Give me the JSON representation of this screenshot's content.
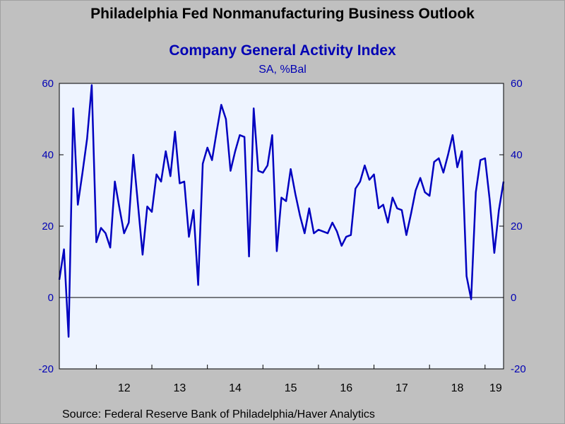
{
  "header": {
    "title": "Philadelphia Fed Nonmanufacturing Business Outlook"
  },
  "footer": {
    "source": "Source:  Federal Reserve Bank of Philadelphia/Haver Analytics"
  },
  "colors": {
    "background": "#c0c0c0",
    "plot_background": "#eef4ff",
    "series": "#0000c0",
    "axis_text": "#0000b4"
  },
  "chart_data": {
    "type": "line",
    "title": "Company General Activity Index",
    "subtitle": "SA, %Bal",
    "ylim": [
      -20,
      60
    ],
    "yticks": [
      -20,
      0,
      20,
      40,
      60
    ],
    "y_axis_both_sides": true,
    "zero_line": true,
    "x_start": "2011-05",
    "x_end": "2019-05",
    "xtick_labels": [
      "12",
      "13",
      "14",
      "15",
      "16",
      "17",
      "18",
      "19"
    ],
    "xtick_years": [
      2012,
      2013,
      2014,
      2015,
      2016,
      2017,
      2018,
      2019
    ],
    "series": [
      {
        "x": [
          "2011-05",
          "2011-06",
          "2011-07",
          "2011-08",
          "2011-09",
          "2011-10",
          "2011-11",
          "2011-12",
          "2012-01",
          "2012-02",
          "2012-03",
          "2012-04",
          "2012-05",
          "2012-06",
          "2012-07",
          "2012-08",
          "2012-09",
          "2012-10",
          "2012-11",
          "2012-12",
          "2013-01",
          "2013-02",
          "2013-03",
          "2013-04",
          "2013-05",
          "2013-06",
          "2013-07",
          "2013-08",
          "2013-09",
          "2013-10",
          "2013-11",
          "2013-12",
          "2014-01",
          "2014-02",
          "2014-03",
          "2014-04",
          "2014-05",
          "2014-06",
          "2014-07",
          "2014-08",
          "2014-09",
          "2014-10",
          "2014-11",
          "2014-12",
          "2015-01",
          "2015-02",
          "2015-03",
          "2015-04",
          "2015-05",
          "2015-06",
          "2015-07",
          "2015-08",
          "2015-09",
          "2015-10",
          "2015-11",
          "2015-12",
          "2016-01",
          "2016-02",
          "2016-03",
          "2016-04",
          "2016-05",
          "2016-06",
          "2016-07",
          "2016-08",
          "2016-09",
          "2016-10",
          "2016-11",
          "2016-12",
          "2017-01",
          "2017-02",
          "2017-03",
          "2017-04",
          "2017-05",
          "2017-06",
          "2017-07",
          "2017-08",
          "2017-09",
          "2017-10",
          "2017-11",
          "2017-12",
          "2018-01",
          "2018-02",
          "2018-03",
          "2018-04",
          "2018-05",
          "2018-06",
          "2018-07",
          "2018-08",
          "2018-09",
          "2018-10",
          "2018-11",
          "2018-12",
          "2019-01",
          "2019-02",
          "2019-03",
          "2019-04",
          "2019-05"
        ],
        "values": [
          5,
          13.5,
          -11,
          53,
          26,
          35,
          44.5,
          59.5,
          15.5,
          19.5,
          18,
          14,
          32.5,
          25,
          18,
          21,
          40,
          26,
          12,
          25.5,
          24,
          34.5,
          32.5,
          41,
          34,
          46.5,
          32,
          32.5,
          17,
          24.5,
          3.5,
          37.5,
          42,
          38.5,
          46.5,
          54,
          50,
          35.5,
          41,
          45.5,
          45,
          11.5,
          53,
          35.5,
          35,
          37,
          45.5,
          13,
          28,
          27,
          36,
          29,
          23,
          18,
          25,
          18,
          19,
          18.5,
          18,
          21,
          18.5,
          14.5,
          17,
          17.5,
          30.5,
          32.5,
          37,
          33,
          34.5,
          25,
          26,
          21,
          28,
          25,
          24.5,
          17.5,
          23.5,
          30,
          33.5,
          29.5,
          28.5,
          38,
          39,
          35,
          40,
          45.5,
          36.5,
          41,
          6,
          -0.5,
          29.5,
          38.5,
          39,
          27.5,
          12.5,
          24.5,
          32.5
        ]
      }
    ]
  }
}
